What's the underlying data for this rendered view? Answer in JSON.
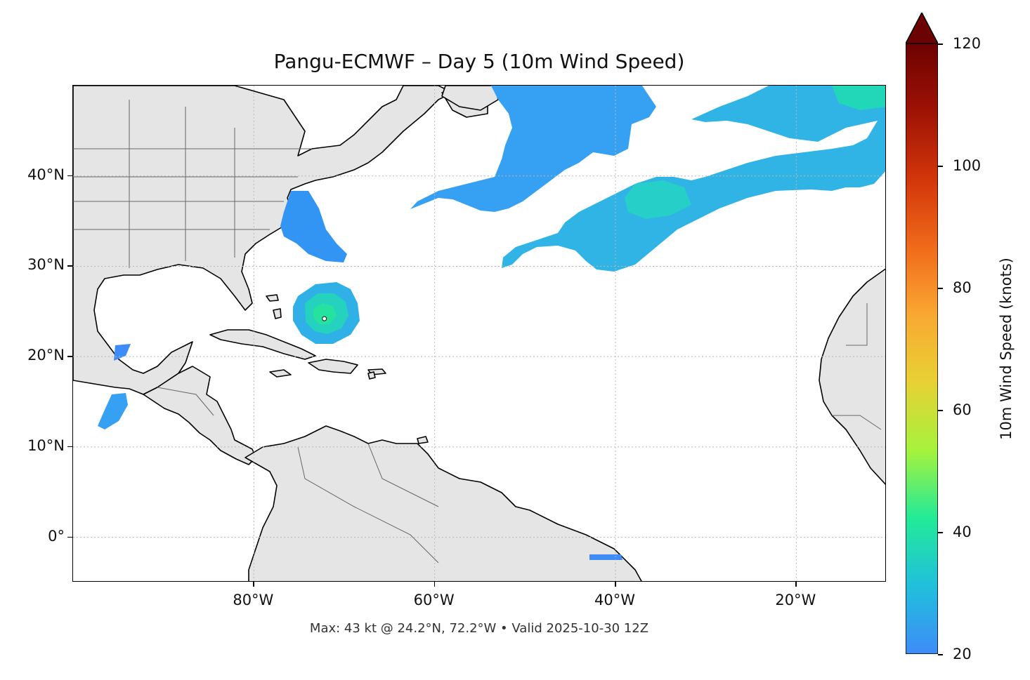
{
  "title": "Pangu-ECMWF – Day 5 (10m Wind Speed)",
  "footnote": "Max: 43 kt @ 24.2°N, 72.2°W • Valid 2025-10-30 12Z",
  "map": {
    "lon_range": [
      -100,
      -10
    ],
    "lat_range": [
      -5,
      50
    ],
    "land_color": "#e5e5e5",
    "coast_color": "#000000",
    "border_color": "#666666",
    "grid": true,
    "lat_ticks": [
      {
        "lat": 40,
        "label": "40°N"
      },
      {
        "lat": 30,
        "label": "30°N"
      },
      {
        "lat": 20,
        "label": "20°N"
      },
      {
        "lat": 10,
        "label": "10°N"
      },
      {
        "lat": 0,
        "label": "0°"
      }
    ],
    "lon_ticks": [
      {
        "lon": -80,
        "label": "80°W"
      },
      {
        "lon": -60,
        "label": "60°W"
      },
      {
        "lon": -40,
        "label": "40°W"
      },
      {
        "lon": -20,
        "label": "20°W"
      }
    ],
    "max_marker": {
      "lat": 24.2,
      "lon": -72.2,
      "value_kt": 43
    }
  },
  "colorbar": {
    "label": "10m Wind Speed (knots)",
    "range": [
      20,
      120
    ],
    "extend": "max",
    "ticks": [
      "20",
      "40",
      "60",
      "80",
      "100",
      "120"
    ],
    "colors": [
      "#3e8cf7",
      "#21bfdc",
      "#22ea98",
      "#a6f23d",
      "#e7d234",
      "#f9a832",
      "#f06a1a",
      "#d2360b",
      "#9e1204",
      "#6d0202"
    ]
  },
  "chart_data": {
    "type": "heatmap",
    "title": "Pangu-ECMWF – Day 5 (10m Wind Speed)",
    "xlabel": "",
    "ylabel": "",
    "xlim": [
      -100,
      -10
    ],
    "ylim": [
      -5,
      50
    ],
    "colorbar_label": "10m Wind Speed (knots)",
    "colorbar_range": [
      20,
      120
    ],
    "max_value_kt": 43,
    "max_location": {
      "lat": 24.2,
      "lon": -72.2
    }
  }
}
